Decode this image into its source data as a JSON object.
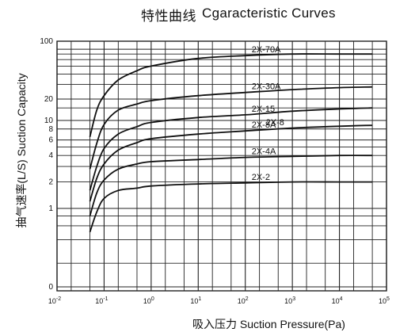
{
  "chart_data": {
    "type": "line",
    "title": "特性曲线",
    "subtitle": "Cgaracteristic Curves",
    "xlabel": "吸入压力 Suction Pressure(Pa)",
    "ylabel": "抽气速率(L/S) Suction Capacity",
    "x_scale": "log",
    "xlim": [
      0.01,
      100000
    ],
    "y_scale": "log",
    "ylim": [
      0,
      100
    ],
    "grid": true,
    "x_ticks": [
      {
        "value": 0.01,
        "base": "10",
        "exp": "-2"
      },
      {
        "value": 0.1,
        "base": "10",
        "exp": "-1"
      },
      {
        "value": 1,
        "base": "10",
        "exp": "0"
      },
      {
        "value": 10,
        "base": "10",
        "exp": "1"
      },
      {
        "value": 100,
        "base": "10",
        "exp": "2"
      },
      {
        "value": 1000,
        "base": "10",
        "exp": "3"
      },
      {
        "value": 10000,
        "base": "10",
        "exp": "4"
      },
      {
        "value": 100000,
        "base": "10",
        "exp": "5"
      }
    ],
    "y_ticks": [
      {
        "value": 100,
        "label": "100"
      },
      {
        "value": 20,
        "label": "20"
      },
      {
        "value": 10,
        "label": "10"
      },
      {
        "value": 8,
        "label": "8"
      },
      {
        "value": 6,
        "label": "6"
      },
      {
        "value": 4,
        "label": "4"
      },
      {
        "value": 2,
        "label": "2"
      },
      {
        "value": 1,
        "label": "1"
      },
      {
        "value": 0,
        "label": "0"
      }
    ],
    "series": [
      {
        "name": "2X-70A",
        "x": [
          0.05,
          0.07,
          0.1,
          0.2,
          0.5,
          1,
          10,
          100,
          1000,
          10000,
          50000
        ],
        "values": [
          6.5,
          14,
          22,
          34,
          44,
          50,
          62,
          67,
          70,
          70,
          70
        ]
      },
      {
        "name": "2X-30A",
        "x": [
          0.05,
          0.07,
          0.1,
          0.2,
          0.5,
          1,
          10,
          100,
          1000,
          10000,
          50000
        ],
        "values": [
          2.8,
          5.5,
          9,
          14,
          17,
          19,
          22,
          24,
          26,
          27.5,
          28
        ]
      },
      {
        "name": "2X-15",
        "x": [
          0.05,
          0.07,
          0.1,
          0.2,
          0.5,
          1,
          10,
          100,
          1000,
          10000,
          50000
        ],
        "values": [
          1.6,
          3,
          4.8,
          7,
          8.5,
          9.5,
          11,
          12,
          13.5,
          14.5,
          15
        ]
      },
      {
        "name": "2X-8A",
        "x": [
          0.05,
          0.07,
          0.1,
          0.2,
          0.5,
          1,
          10,
          100,
          1000,
          10000,
          50000
        ],
        "values": [
          1.2,
          2.2,
          3.2,
          4.6,
          5.6,
          6.2,
          7,
          7.6,
          8.2,
          8.6,
          8.8
        ]
      },
      {
        "name": "2X-4A",
        "x": [
          0.05,
          0.07,
          0.1,
          0.2,
          0.5,
          1,
          10,
          100,
          1000,
          10000,
          50000
        ],
        "values": [
          0.8,
          1.5,
          2.1,
          2.8,
          3.2,
          3.4,
          3.6,
          3.8,
          3.9,
          4,
          4
        ]
      },
      {
        "name": "2X-2",
        "x": [
          0.05,
          0.07,
          0.1,
          0.2,
          0.5,
          1,
          10,
          100,
          1000,
          10000,
          50000
        ],
        "values": [
          0.5,
          0.9,
          1.3,
          1.6,
          1.7,
          1.8,
          1.9,
          1.95,
          2,
          2,
          2
        ]
      }
    ],
    "annotations": [
      {
        "text": "2X-8",
        "x": 200,
        "y": 8.3
      }
    ]
  }
}
